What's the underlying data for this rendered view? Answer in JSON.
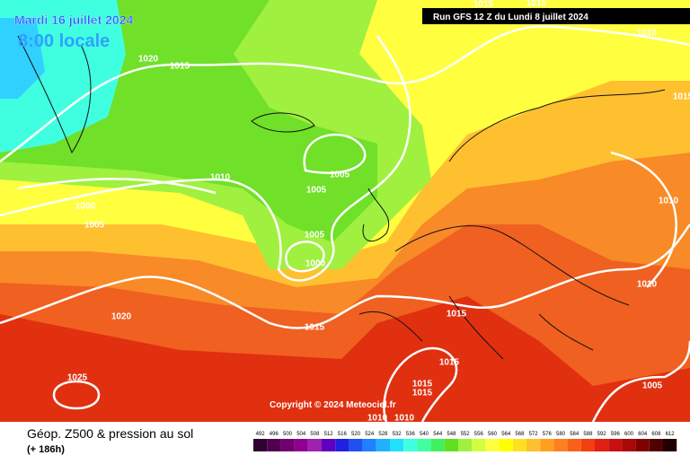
{
  "header": {
    "date": "Mardi 16 juillet 2024",
    "time": "8:00 locale",
    "run": "Run GFS 12 Z du Lundi 8 juillet 2024"
  },
  "copyright": "Copyright © 2024 Meteociel.fr",
  "footer": {
    "title": "Géop. Z500 & pression au sol",
    "lead": "(+ 186h)"
  },
  "isobar_labels": [
    1020,
    1015,
    1015,
    1015,
    1010,
    1015,
    1010,
    1005,
    1005,
    1000,
    1005,
    1010,
    1005,
    1000,
    1010,
    1015,
    1020,
    1015,
    1015,
    1025,
    1015,
    1015,
    1005,
    1010,
    1010
  ],
  "legend": {
    "values": [
      492,
      496,
      500,
      504,
      508,
      512,
      516,
      520,
      524,
      528,
      532,
      536,
      540,
      544,
      548,
      552,
      556,
      560,
      564,
      568,
      572,
      576,
      580,
      584,
      588,
      592,
      596,
      600,
      604,
      608,
      612
    ],
    "colors": [
      "#300030",
      "#500050",
      "#700070",
      "#900090",
      "#a020b0",
      "#6000c0",
      "#2020e0",
      "#2050f0",
      "#2080ff",
      "#20b0ff",
      "#20e0ff",
      "#40ffe0",
      "#40ffa0",
      "#40f060",
      "#60e020",
      "#a0f040",
      "#d0ff40",
      "#ffff40",
      "#ffff00",
      "#ffe020",
      "#ffc030",
      "#ffa020",
      "#ff8020",
      "#f86018",
      "#f04010",
      "#e02010",
      "#c81010",
      "#a80808",
      "#800000",
      "#500000",
      "#200000"
    ]
  }
}
